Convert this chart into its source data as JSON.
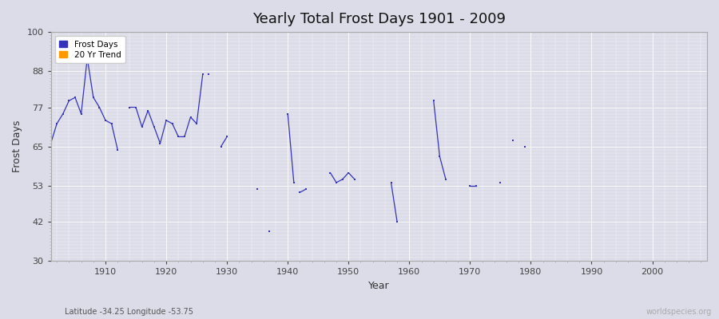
{
  "title": "Yearly Total Frost Days 1901 - 2009",
  "xlabel": "Year",
  "ylabel": "Frost Days",
  "xlim": [
    1901,
    2009
  ],
  "ylim": [
    30,
    100
  ],
  "yticks": [
    30,
    42,
    53,
    65,
    77,
    88,
    100
  ],
  "xticks": [
    1910,
    1920,
    1930,
    1940,
    1950,
    1960,
    1970,
    1980,
    1990,
    2000
  ],
  "background_color": "#dcdce8",
  "plot_bg_color": "#dcdce8",
  "line_color": "#3333bb",
  "marker_color": "#3333bb",
  "legend_frost_color": "#3333bb",
  "legend_trend_color": "#ff9900",
  "subtitle": "Latitude -34.25 Longitude -53.75",
  "watermark": "worldspecies.org",
  "data_segments": [
    {
      "years": [
        1901,
        1902,
        1903,
        1904,
        1905,
        1906,
        1907,
        1908,
        1909,
        1910,
        1911,
        1912
      ],
      "values": [
        66,
        72,
        75,
        79,
        80,
        75,
        92,
        80,
        77,
        73,
        72,
        64
      ]
    },
    {
      "years": [
        1914,
        1915,
        1916,
        1917,
        1918,
        1919,
        1920,
        1921,
        1922,
        1923,
        1924,
        1925,
        1926
      ],
      "values": [
        77,
        77,
        71,
        76,
        71,
        66,
        73,
        72,
        68,
        68,
        74,
        72,
        87
      ]
    },
    {
      "years": [
        1927
      ],
      "values": [
        87
      ]
    },
    {
      "years": [
        1929,
        1930
      ],
      "values": [
        65,
        68
      ]
    },
    {
      "years": [
        1935
      ],
      "values": [
        52
      ]
    },
    {
      "years": [
        1937
      ],
      "values": [
        39
      ]
    },
    {
      "years": [
        1940,
        1941
      ],
      "values": [
        75,
        54
      ]
    },
    {
      "years": [
        1942,
        1943
      ],
      "values": [
        51,
        52
      ]
    },
    {
      "years": [
        1947,
        1948,
        1949,
        1950,
        1951
      ],
      "values": [
        57,
        54,
        55,
        57,
        55
      ]
    },
    {
      "years": [
        1957,
        1958
      ],
      "values": [
        54,
        42
      ]
    },
    {
      "years": [
        1964,
        1965,
        1966
      ],
      "values": [
        79,
        62,
        55
      ]
    },
    {
      "years": [
        1970,
        1971
      ],
      "values": [
        53,
        53
      ]
    },
    {
      "years": [
        1975
      ],
      "values": [
        54
      ]
    },
    {
      "years": [
        1977
      ],
      "values": [
        67
      ]
    },
    {
      "years": [
        1979
      ],
      "values": [
        65
      ]
    }
  ]
}
